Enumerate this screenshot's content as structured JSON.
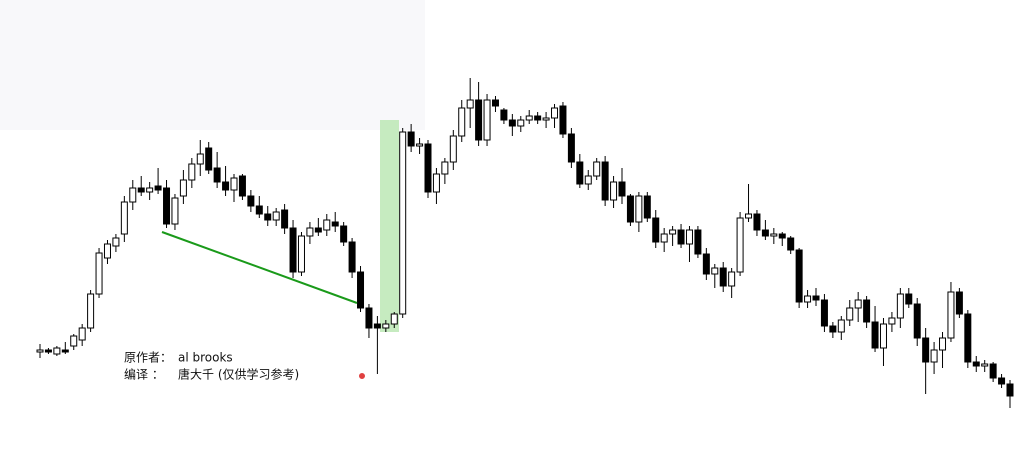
{
  "chart_data": {
    "type": "candlestick",
    "annotations": [
      "原作者：",
      "al brooks",
      "编译 ：",
      "唐大千 (仅供学习参考)"
    ],
    "up_color": "#ffffff",
    "down_color": "#000000",
    "ylim": [
      0,
      458
    ],
    "open": [
      106,
      108,
      104,
      108,
      112,
      118,
      130,
      164,
      200,
      212,
      224,
      256,
      270,
      266,
      272,
      270,
      234,
      262,
      278,
      294,
      310,
      290,
      276,
      268,
      282,
      262,
      252,
      244,
      238,
      248,
      230,
      186,
      222,
      230,
      228,
      236,
      232,
      216,
      186,
      150,
      134,
      130,
      134,
      144,
      326,
      312,
      314,
      266,
      284,
      296,
      322,
      350,
      358,
      318,
      358,
      348,
      338,
      332,
      338,
      342,
      338,
      340,
      352,
      324,
      296,
      274,
      282,
      296,
      258,
      276,
      262,
      236,
      262,
      240,
      216,
      224,
      228,
      214,
      228,
      204,
      184,
      190,
      172,
      186,
      240,
      244,
      228,
      222,
      224,
      220,
      208,
      156,
      162,
      158,
      132,
      126,
      138,
      150,
      158,
      136,
      110,
      134,
      140,
      164,
      154,
      120,
      96,
      108,
      120,
      166,
      144,
      96,
      92,
      94,
      80,
      74
    ],
    "high": [
      114,
      110,
      112,
      116,
      124,
      134,
      168,
      210,
      218,
      224,
      262,
      278,
      282,
      276,
      290,
      278,
      264,
      288,
      300,
      318,
      316,
      306,
      292,
      284,
      284,
      268,
      262,
      252,
      250,
      254,
      238,
      226,
      236,
      240,
      244,
      246,
      236,
      220,
      192,
      154,
      142,
      138,
      146,
      330,
      334,
      320,
      318,
      290,
      300,
      328,
      358,
      380,
      376,
      364,
      362,
      350,
      344,
      342,
      348,
      346,
      346,
      354,
      356,
      330,
      304,
      288,
      300,
      302,
      282,
      290,
      264,
      266,
      266,
      248,
      230,
      232,
      234,
      232,
      232,
      210,
      194,
      196,
      190,
      246,
      274,
      248,
      238,
      230,
      226,
      222,
      210,
      168,
      170,
      164,
      136,
      142,
      158,
      166,
      162,
      152,
      140,
      146,
      170,
      170,
      160,
      130,
      116,
      126,
      176,
      170,
      148,
      102,
      98,
      96,
      84,
      78
    ],
    "low": [
      100,
      104,
      102,
      104,
      108,
      112,
      126,
      160,
      194,
      206,
      216,
      248,
      262,
      258,
      264,
      230,
      228,
      254,
      270,
      282,
      284,
      270,
      262,
      256,
      258,
      246,
      240,
      232,
      232,
      224,
      180,
      182,
      214,
      222,
      222,
      226,
      212,
      180,
      146,
      120,
      84,
      126,
      130,
      140,
      306,
      304,
      260,
      254,
      274,
      288,
      316,
      330,
      312,
      312,
      346,
      334,
      322,
      326,
      334,
      334,
      330,
      330,
      320,
      290,
      270,
      268,
      278,
      252,
      250,
      254,
      232,
      226,
      236,
      210,
      206,
      212,
      210,
      196,
      200,
      178,
      170,
      166,
      160,
      182,
      236,
      222,
      218,
      214,
      212,
      204,
      150,
      150,
      152,
      126,
      120,
      118,
      132,
      136,
      130,
      106,
      92,
      126,
      130,
      150,
      112,
      64,
      84,
      90,
      116,
      140,
      90,
      86,
      86,
      76,
      70,
      50
    ],
    "close": [
      108,
      106,
      110,
      106,
      122,
      130,
      164,
      205,
      214,
      220,
      256,
      270,
      266,
      270,
      268,
      234,
      260,
      278,
      294,
      304,
      288,
      276,
      268,
      280,
      262,
      252,
      244,
      238,
      246,
      230,
      186,
      222,
      230,
      226,
      238,
      232,
      216,
      186,
      150,
      130,
      130,
      134,
      144,
      326,
      312,
      314,
      266,
      284,
      296,
      322,
      350,
      358,
      318,
      358,
      352,
      338,
      332,
      338,
      342,
      338,
      340,
      350,
      324,
      296,
      274,
      282,
      296,
      258,
      276,
      262,
      236,
      262,
      240,
      216,
      224,
      228,
      214,
      228,
      204,
      184,
      190,
      172,
      186,
      240,
      244,
      228,
      222,
      224,
      220,
      208,
      156,
      162,
      158,
      132,
      126,
      138,
      150,
      158,
      136,
      110,
      134,
      140,
      164,
      154,
      120,
      96,
      108,
      120,
      166,
      144,
      96,
      92,
      94,
      80,
      74,
      62
    ]
  }
}
